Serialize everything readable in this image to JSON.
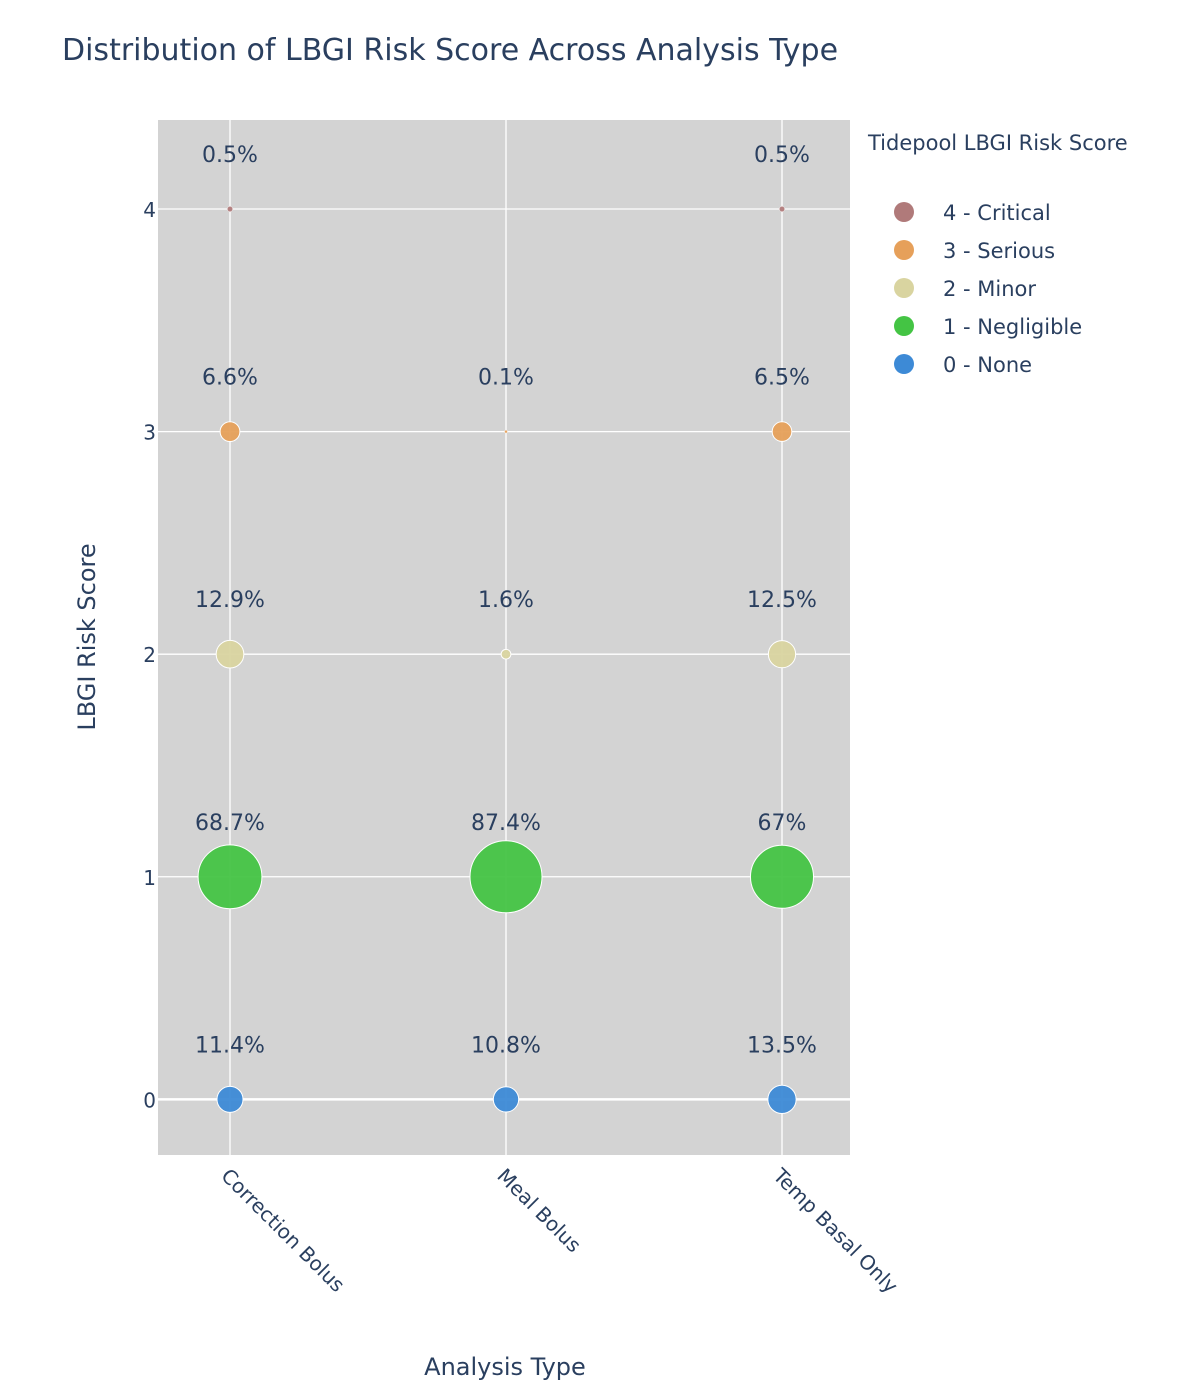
{
  "chart_data": {
    "type": "scatter",
    "title": "Distribution of LBGI Risk Score Across Analysis Type",
    "xlabel": "Analysis Type",
    "ylabel": "LBGI Risk Score",
    "categories": [
      "Correction Bolus",
      "Meal Bolus",
      "Temp Basal Only"
    ],
    "y_ticks": [
      "0",
      "1",
      "2",
      "3",
      "4"
    ],
    "ylim": [
      -0.25,
      4.4
    ],
    "grid": true,
    "legend": {
      "title": "Tidepool LBGI Risk Score",
      "placement": "top-right"
    },
    "series": [
      {
        "name": "4 - Critical",
        "y": 4,
        "color": "#b07a7a",
        "points": [
          {
            "category": "Correction Bolus",
            "percent": 0.5,
            "label": "0.5%"
          },
          {
            "category": "Temp Basal Only",
            "percent": 0.5,
            "label": "0.5%"
          }
        ]
      },
      {
        "name": "3 - Serious",
        "y": 3,
        "color": "#e6a05a",
        "points": [
          {
            "category": "Correction Bolus",
            "percent": 6.6,
            "label": "6.6%"
          },
          {
            "category": "Meal Bolus",
            "percent": 0.1,
            "label": "0.1%"
          },
          {
            "category": "Temp Basal Only",
            "percent": 6.5,
            "label": "6.5%"
          }
        ]
      },
      {
        "name": "2 - Minor",
        "y": 2,
        "color": "#d9d4a0",
        "points": [
          {
            "category": "Correction Bolus",
            "percent": 12.9,
            "label": "12.9%"
          },
          {
            "category": "Meal Bolus",
            "percent": 1.6,
            "label": "1.6%"
          },
          {
            "category": "Temp Basal Only",
            "percent": 12.5,
            "label": "12.5%"
          }
        ]
      },
      {
        "name": "1 - Negligible",
        "y": 1,
        "color": "#44c444",
        "points": [
          {
            "category": "Correction Bolus",
            "percent": 68.7,
            "label": "68.7%"
          },
          {
            "category": "Meal Bolus",
            "percent": 87.4,
            "label": "87.4%"
          },
          {
            "category": "Temp Basal Only",
            "percent": 67,
            "label": "67%"
          }
        ]
      },
      {
        "name": "0 - None",
        "y": 0,
        "color": "#3d8ad6",
        "points": [
          {
            "category": "Correction Bolus",
            "percent": 11.4,
            "label": "11.4%"
          },
          {
            "category": "Meal Bolus",
            "percent": 10.8,
            "label": "10.8%"
          },
          {
            "category": "Temp Basal Only",
            "percent": 13.5,
            "label": "13.5%"
          }
        ]
      }
    ]
  }
}
